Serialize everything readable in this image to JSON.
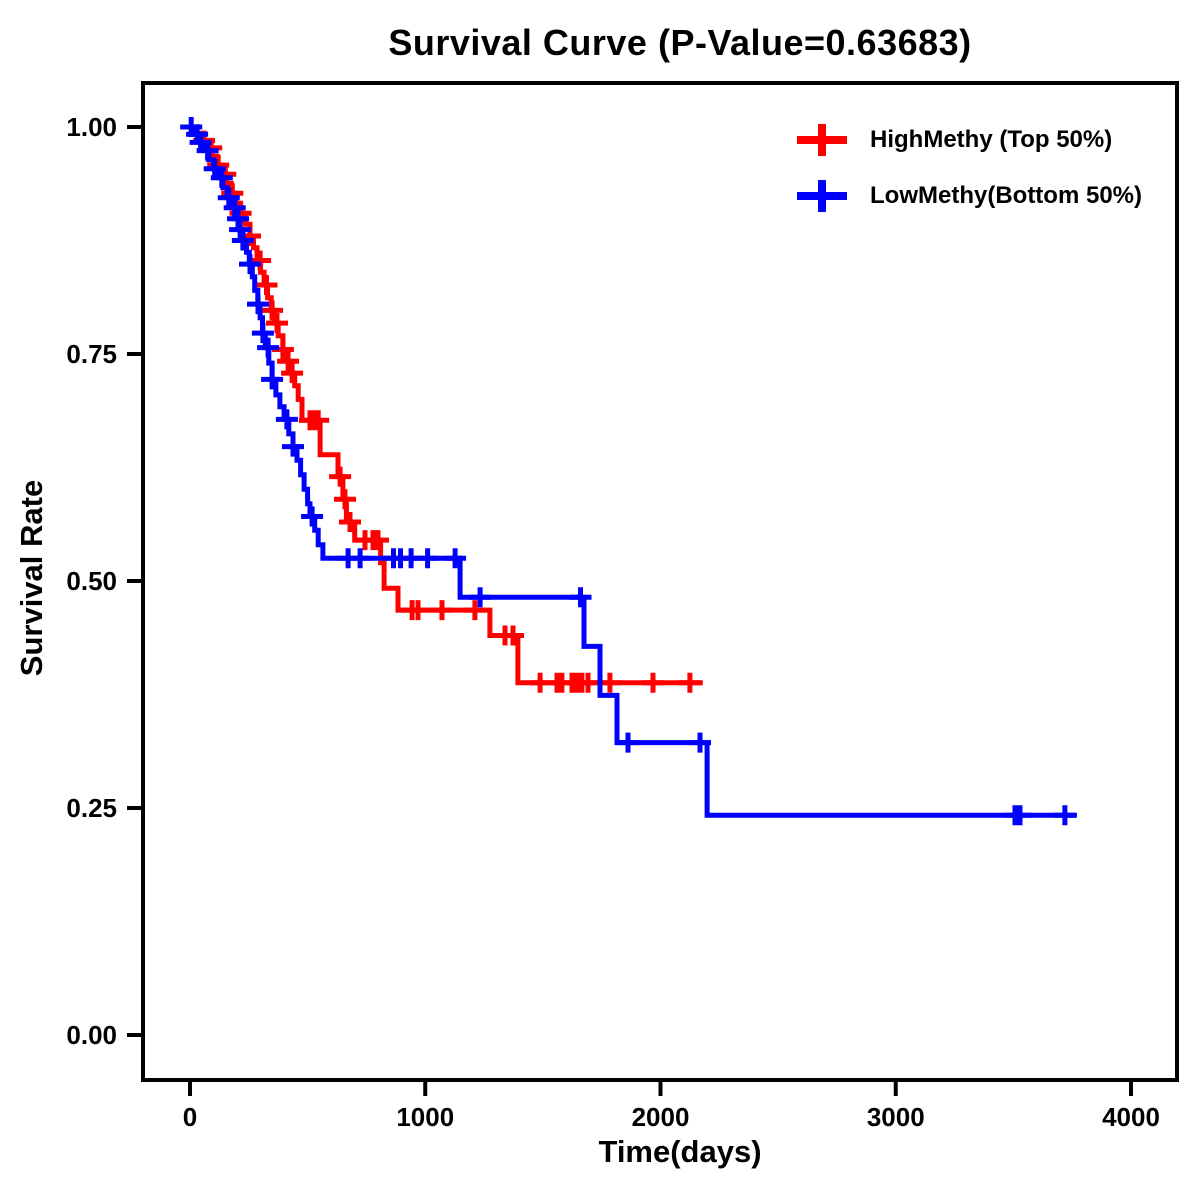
{
  "title": {
    "text": "Survival Curve (P-Value=0.63683)"
  },
  "axes": {
    "x_label": "Time(days)",
    "y_label": "Survival Rate",
    "x_ticks": [
      "0",
      "1000",
      "2000",
      "3000",
      "4000"
    ],
    "y_ticks": [
      "0.00",
      "0.25",
      "0.50",
      "0.75",
      "1.00"
    ]
  },
  "legend": {
    "position": "top-right",
    "entries": [
      {
        "label": "HighMethy (Top 50%)",
        "color": "#ff0000",
        "marker": "plus-cross"
      },
      {
        "label": "LowMethy(Bottom 50%)",
        "color": "#0000ff",
        "marker": "plus-cross"
      }
    ]
  },
  "colors": {
    "high_methy": "#ff0000",
    "low_methy": "#0000ff",
    "axis": "#000000",
    "background": "#ffffff"
  },
  "chart_data": {
    "type": "line",
    "subtype": "kaplan-meier-step",
    "title": "Survival Curve (P-Value=0.63683)",
    "p_value": 0.63683,
    "xlabel": "Time(days)",
    "ylabel": "Survival Rate",
    "xlim": [
      0,
      4000
    ],
    "ylim": [
      0,
      1
    ],
    "xticks": [
      0,
      1000,
      2000,
      3000,
      4000
    ],
    "yticks": [
      0,
      0.25,
      0.5,
      0.75,
      1
    ],
    "grid": false,
    "legend_position": "top-right",
    "series": [
      {
        "name": "HighMethy (Top 50%)",
        "color": "#ff0000",
        "steps": [
          [
            0,
            1.0
          ],
          [
            20,
            0.993
          ],
          [
            45,
            0.985
          ],
          [
            70,
            0.977
          ],
          [
            95,
            0.968
          ],
          [
            115,
            0.958
          ],
          [
            135,
            0.948
          ],
          [
            155,
            0.938
          ],
          [
            175,
            0.927
          ],
          [
            195,
            0.916
          ],
          [
            215,
            0.905
          ],
          [
            235,
            0.893
          ],
          [
            255,
            0.88
          ],
          [
            270,
            0.867
          ],
          [
            285,
            0.853
          ],
          [
            300,
            0.84
          ],
          [
            315,
            0.826
          ],
          [
            330,
            0.812
          ],
          [
            345,
            0.798
          ],
          [
            360,
            0.784
          ],
          [
            375,
            0.77
          ],
          [
            395,
            0.755
          ],
          [
            415,
            0.742
          ],
          [
            430,
            0.729
          ],
          [
            445,
            0.715
          ],
          [
            460,
            0.7
          ],
          [
            476,
            0.677
          ],
          [
            553,
            0.639
          ],
          [
            629,
            0.615
          ],
          [
            650,
            0.59
          ],
          [
            665,
            0.565
          ],
          [
            700,
            0.545
          ],
          [
            810,
            0.52
          ],
          [
            825,
            0.492
          ],
          [
            884,
            0.468
          ],
          [
            1275,
            0.44
          ],
          [
            1394,
            0.388
          ]
        ],
        "end_time": 2180,
        "censor_times": [
          60,
          90,
          120,
          150,
          180,
          215,
          255,
          298,
          325,
          349,
          370,
          395,
          417,
          434,
          510,
          530,
          545,
          638,
          659,
          680,
          744,
          778,
          799,
          944,
          969,
          1071,
          1211,
          1339,
          1373,
          1488,
          1560,
          1581,
          1624,
          1645,
          1666,
          1692,
          1785,
          1968,
          2125
        ]
      },
      {
        "name": "LowMethy(Bottom 50%)",
        "color": "#0000ff",
        "steps": [
          [
            0,
            1.0
          ],
          [
            15,
            0.992
          ],
          [
            40,
            0.983
          ],
          [
            60,
            0.974
          ],
          [
            80,
            0.964
          ],
          [
            100,
            0.954
          ],
          [
            120,
            0.944
          ],
          [
            140,
            0.933
          ],
          [
            158,
            0.922
          ],
          [
            175,
            0.911
          ],
          [
            192,
            0.899
          ],
          [
            210,
            0.887
          ],
          [
            225,
            0.875
          ],
          [
            240,
            0.862
          ],
          [
            252,
            0.849
          ],
          [
            265,
            0.835
          ],
          [
            275,
            0.82
          ],
          [
            288,
            0.805
          ],
          [
            298,
            0.79
          ],
          [
            308,
            0.773
          ],
          [
            320,
            0.757
          ],
          [
            335,
            0.74
          ],
          [
            349,
            0.722
          ],
          [
            365,
            0.705
          ],
          [
            382,
            0.692
          ],
          [
            400,
            0.678
          ],
          [
            420,
            0.662
          ],
          [
            438,
            0.648
          ],
          [
            455,
            0.633
          ],
          [
            470,
            0.617
          ],
          [
            485,
            0.601
          ],
          [
            500,
            0.585
          ],
          [
            510,
            0.571
          ],
          [
            530,
            0.556
          ],
          [
            545,
            0.54
          ],
          [
            565,
            0.525
          ],
          [
            1148,
            0.482
          ],
          [
            1675,
            0.428
          ],
          [
            1743,
            0.374
          ],
          [
            1815,
            0.322
          ],
          [
            2198,
            0.242
          ]
        ],
        "end_time": 3770,
        "censor_times": [
          5,
          30,
          45,
          75,
          105,
          135,
          165,
          190,
          204,
          213,
          225,
          255,
          289,
          310,
          332,
          349,
          412,
          438,
          519,
          672,
          723,
          865,
          895,
          940,
          1010,
          1127,
          1233,
          1660,
          1862,
          2168,
          3507,
          3528,
          3719
        ]
      }
    ]
  },
  "layout_note": "step curves with + censor marks"
}
